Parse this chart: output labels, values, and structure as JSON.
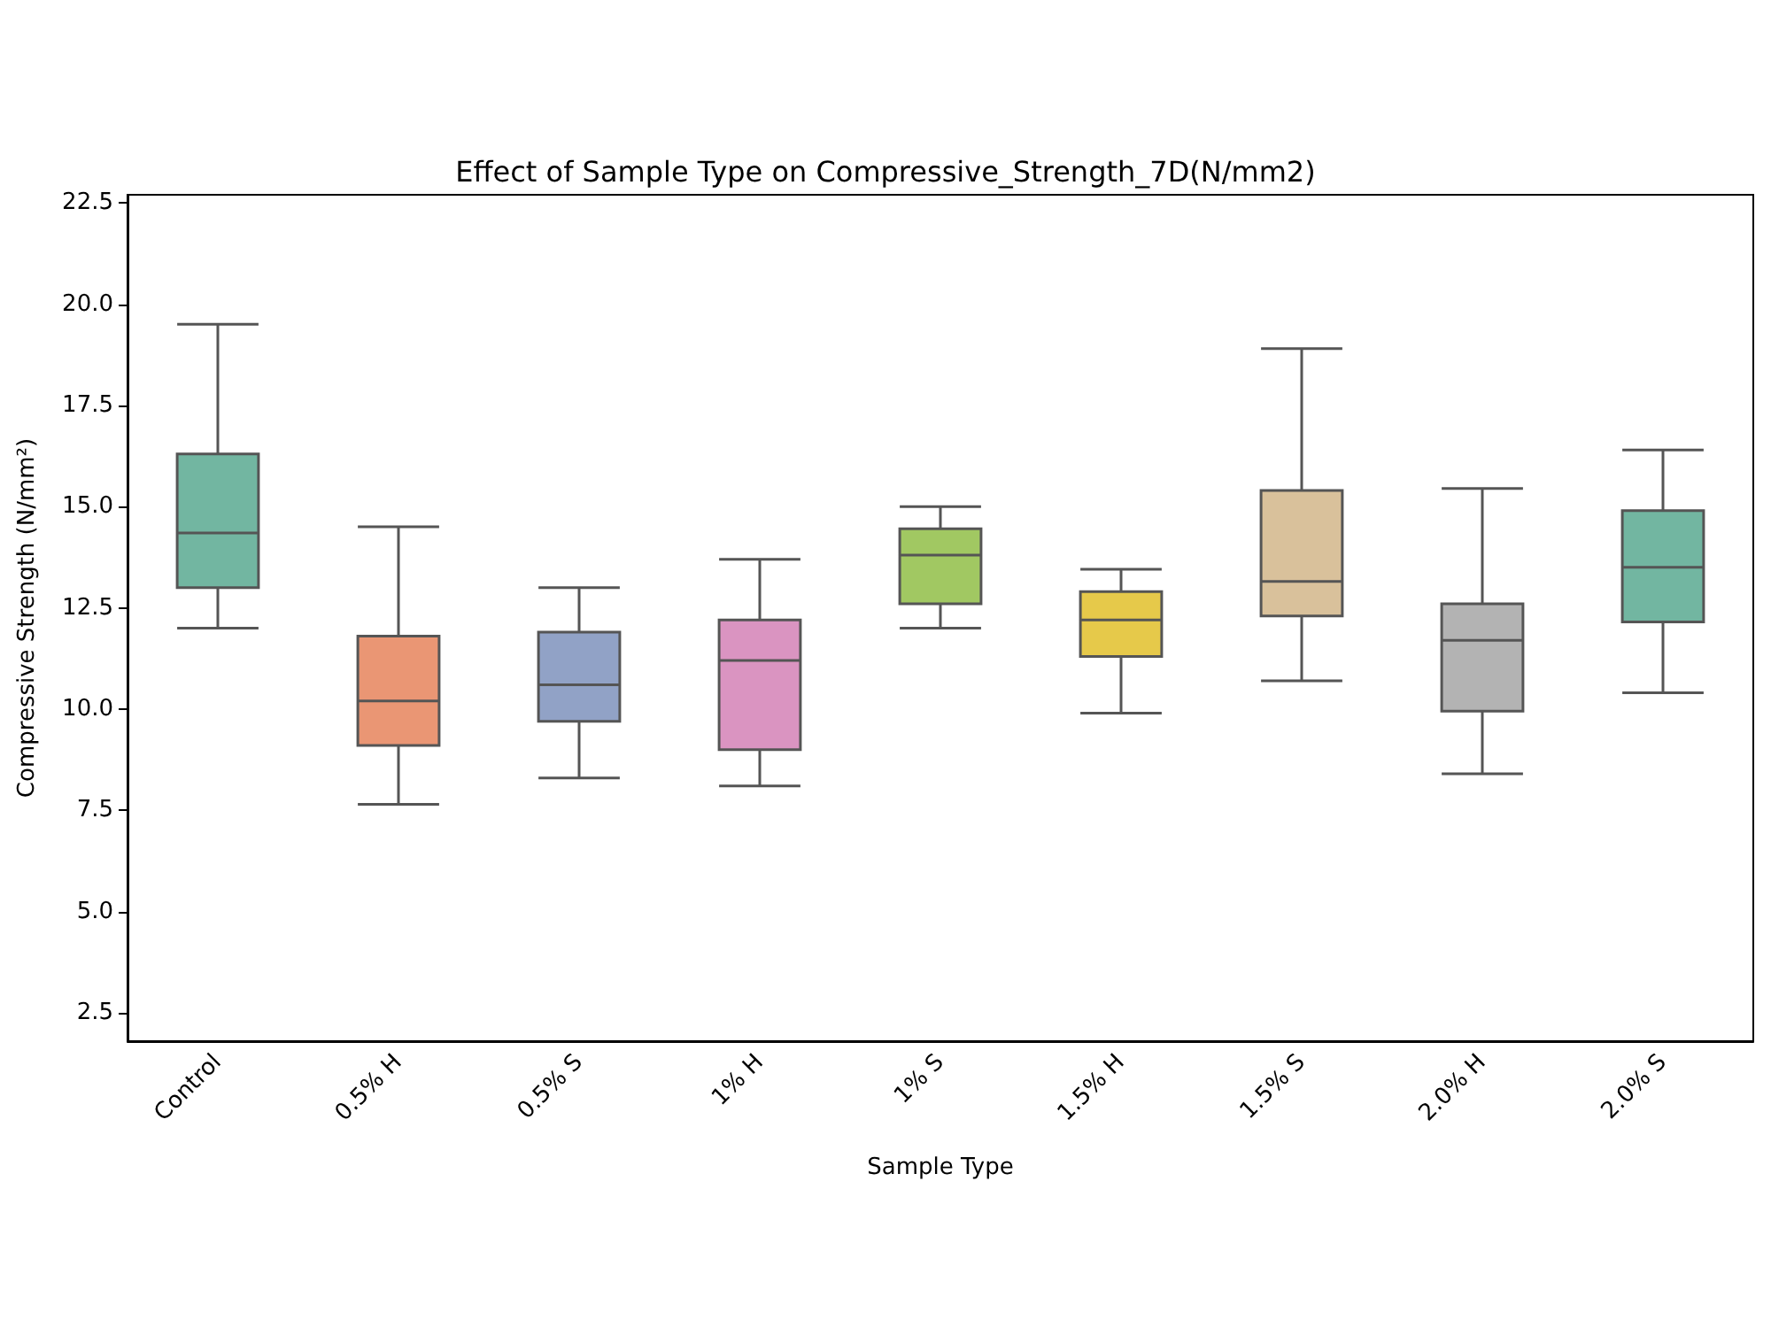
{
  "chart_data": {
    "type": "box",
    "title": "Effect of Sample Type on Compressive_Strength_7D(N/mm2)",
    "xlabel": "Sample Type",
    "ylabel": "Compressive Strength (N/mm²)",
    "categories": [
      "Control",
      "0.5% H",
      "0.5% S",
      "1% H",
      "1% S",
      "1.5% H",
      "1.5% S",
      "2.0% H",
      "2.0% S"
    ],
    "boxes": [
      {
        "low": 12.0,
        "q1": 13.0,
        "median": 14.35,
        "q3": 16.3,
        "high": 19.5
      },
      {
        "low": 7.65,
        "q1": 9.1,
        "median": 10.2,
        "q3": 11.8,
        "high": 14.5
      },
      {
        "low": 8.3,
        "q1": 9.7,
        "median": 10.6,
        "q3": 11.9,
        "high": 13.0
      },
      {
        "low": 8.1,
        "q1": 9.0,
        "median": 11.2,
        "q3": 12.2,
        "high": 13.7
      },
      {
        "low": 12.0,
        "q1": 12.6,
        "median": 13.8,
        "q3": 14.45,
        "high": 15.0
      },
      {
        "low": 9.9,
        "q1": 11.3,
        "median": 12.2,
        "q3": 12.9,
        "high": 13.45
      },
      {
        "low": 10.7,
        "q1": 12.3,
        "median": 13.15,
        "q3": 15.4,
        "high": 18.9
      },
      {
        "low": 8.4,
        "q1": 9.95,
        "median": 11.7,
        "q3": 12.6,
        "high": 15.45
      },
      {
        "low": 10.4,
        "q1": 12.15,
        "median": 13.5,
        "q3": 14.9,
        "high": 16.4
      }
    ],
    "colors": [
      "#72b6a1",
      "#ea9674",
      "#91a2c6",
      "#da94c1",
      "#a1c862",
      "#e6c94a",
      "#d9c19b",
      "#b3b3b3",
      "#72b6a1"
    ],
    "ylim": [
      1.8,
      22.7
    ],
    "yticks": [
      {
        "value": 2.5,
        "label": "2.5"
      },
      {
        "value": 5,
        "label": "5.0"
      },
      {
        "value": 7.5,
        "label": "7.5"
      },
      {
        "value": 10,
        "label": "10.0"
      },
      {
        "value": 12.5,
        "label": "12.5"
      },
      {
        "value": 15,
        "label": "15.0"
      },
      {
        "value": 17.5,
        "label": "17.5"
      },
      {
        "value": 20,
        "label": "20.0"
      },
      {
        "value": 22.5,
        "label": "22.5"
      }
    ],
    "grid": false
  }
}
